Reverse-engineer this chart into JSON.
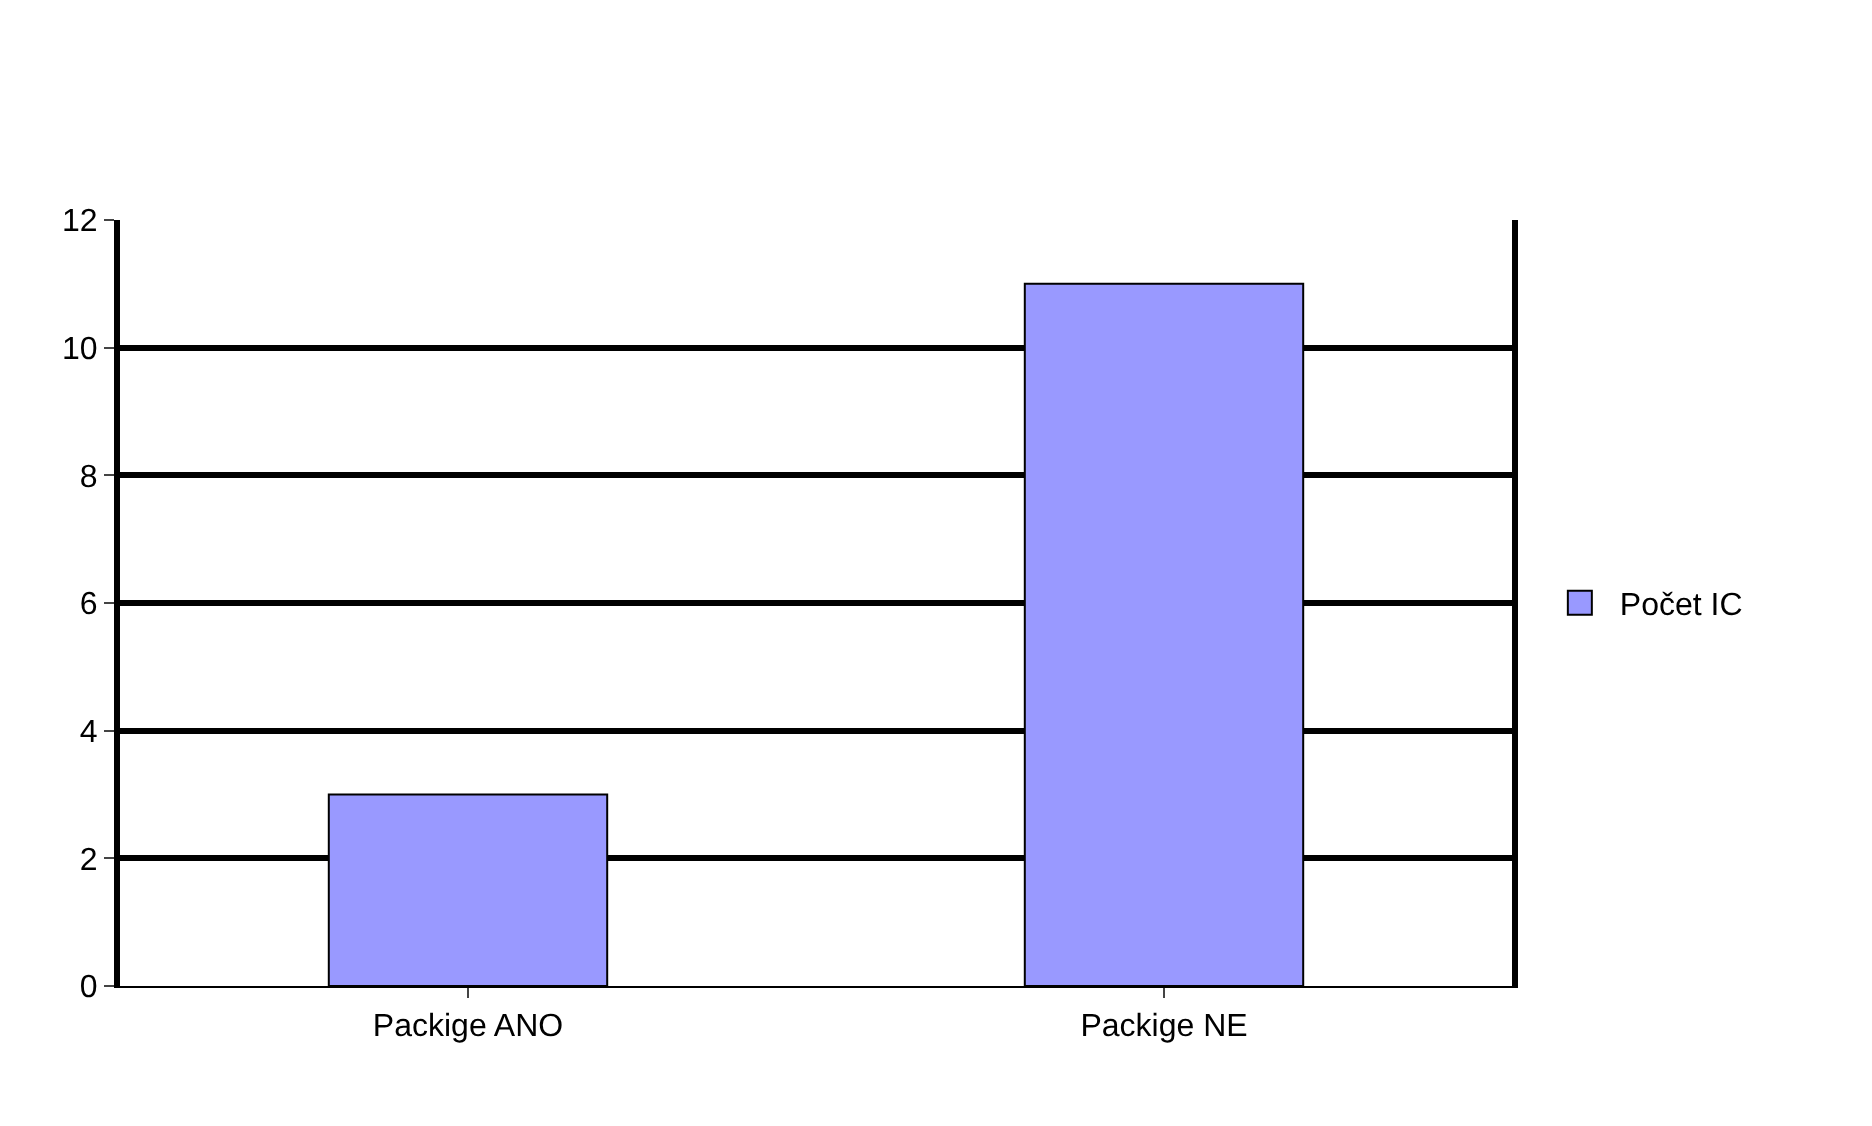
{
  "chart_data": {
    "type": "bar",
    "categories": [
      "Packige ANO",
      "Packige NE"
    ],
    "series": [
      {
        "name": "Počet IC",
        "color": "#9999ff",
        "values": [
          3,
          11
        ]
      }
    ],
    "ylim": [
      0,
      12
    ],
    "yticks": [
      0,
      2,
      4,
      6,
      8,
      10,
      12
    ],
    "grid": "y",
    "legend": "right"
  }
}
